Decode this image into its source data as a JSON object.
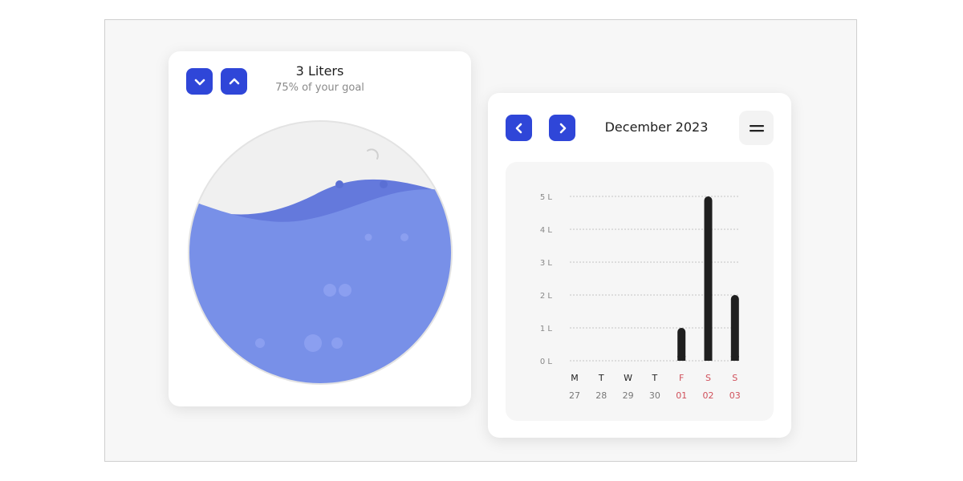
{
  "water": {
    "title": "3 Liters",
    "subtitle": "75% of your goal",
    "fill_fraction": 0.75,
    "decrease_icon": "chevron-down-icon",
    "increase_icon": "chevron-up-icon"
  },
  "calendar": {
    "month_label": "December 2023",
    "prev_icon": "chevron-left-icon",
    "next_icon": "chevron-right-icon",
    "menu_icon": "menu-icon"
  },
  "colors": {
    "accent": "#2f46d8",
    "water": "#7890e8",
    "water_back": "#6479dc",
    "bar": "#1f1f1f",
    "weekend": "#d0505b"
  },
  "chart_data": {
    "type": "bar",
    "title": "",
    "xlabel": "",
    "ylabel": "",
    "ylim": [
      0,
      5
    ],
    "yticks": [
      "0 L",
      "1 L",
      "2 L",
      "3 L",
      "4 L",
      "5 L"
    ],
    "grid": true,
    "days": [
      {
        "letter": "M",
        "date": "27",
        "weekend": false
      },
      {
        "letter": "T",
        "date": "28",
        "weekend": false
      },
      {
        "letter": "W",
        "date": "29",
        "weekend": false
      },
      {
        "letter": "T",
        "date": "30",
        "weekend": false
      },
      {
        "letter": "F",
        "date": "01",
        "weekend": true
      },
      {
        "letter": "S",
        "date": "02",
        "weekend": true
      },
      {
        "letter": "S",
        "date": "03",
        "weekend": true
      }
    ],
    "values": [
      0,
      0,
      0,
      0,
      1,
      5,
      2
    ]
  }
}
